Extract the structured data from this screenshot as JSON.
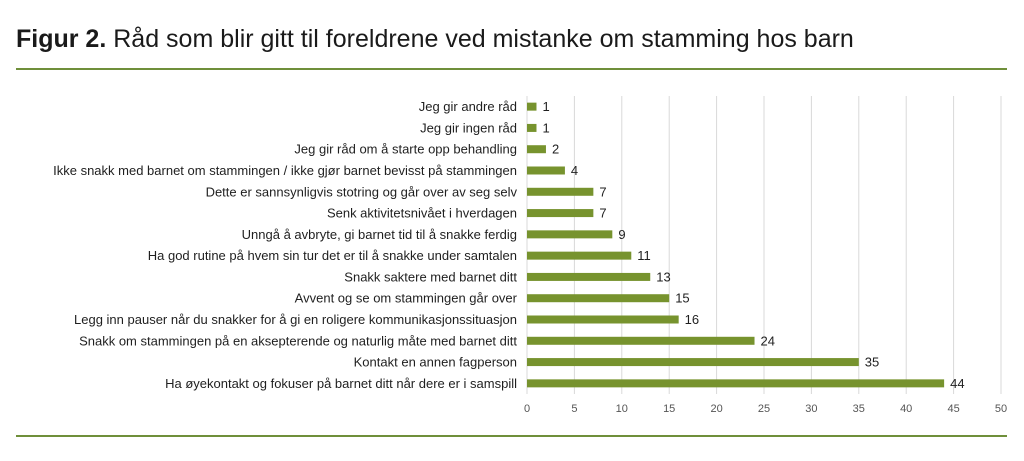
{
  "figure": {
    "number": "Figur 2.",
    "caption": "Råd som blir gitt til foreldrene ved mistanke om stamming hos barn"
  },
  "colors": {
    "bar": "#77932e",
    "rule": "#6f8f3a",
    "grid": "#d9d9d9"
  },
  "chart_data": {
    "type": "bar",
    "orientation": "horizontal",
    "categories": [
      "Jeg gir andre råd",
      "Jeg gir ingen råd",
      "Jeg gir råd om å starte opp behandling",
      "Ikke snakk med barnet om stammingen / ikke gjør barnet bevisst på stammingen",
      "Dette er sannsynligvis stotring og går over av seg selv",
      "Senk aktivitetsnivået i hverdagen",
      "Unngå å avbryte, gi barnet tid til å snakke ferdig",
      "Ha god rutine på hvem sin tur det er til å snakke under samtalen",
      "Snakk saktere med barnet ditt",
      "Avvent og se om stammingen går over",
      "Legg inn pauser når du snakker for å gi en roligere kommunikasjonssituasjon",
      "Snakk om stammingen på en aksepterende og naturlig måte med barnet ditt",
      "Kontakt en annen fagperson",
      "Ha øyekontakt og fokuser på barnet ditt når dere er i samspill"
    ],
    "values": [
      1,
      1,
      2,
      4,
      7,
      7,
      9,
      11,
      13,
      15,
      16,
      24,
      35,
      44
    ],
    "xlim": [
      0,
      50
    ],
    "xticks": [
      "0",
      "5",
      "10",
      "15",
      "20",
      "25",
      "30",
      "35",
      "40",
      "45",
      "50"
    ],
    "grid": true,
    "data_labels": true,
    "legend": "none"
  }
}
